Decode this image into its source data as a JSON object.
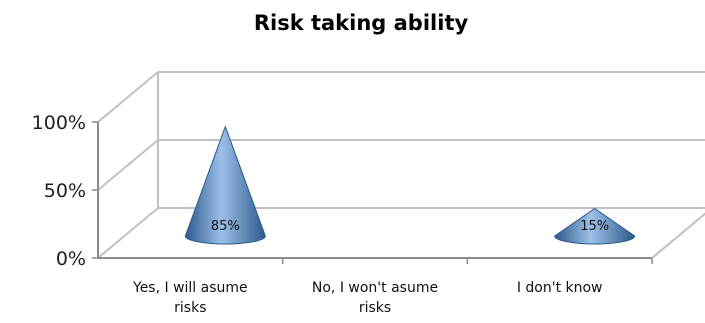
{
  "chart_data": {
    "type": "bar",
    "title": "Risk taking ability",
    "categories": [
      [
        "Yes, I will asume",
        "risks"
      ],
      [
        "No, I won't asume",
        "risks"
      ],
      [
        "I don't know"
      ]
    ],
    "values": [
      85,
      0,
      15
    ],
    "data_labels": [
      "85%",
      "",
      "15%"
    ],
    "y_ticks": [
      "0%",
      "50%",
      "100%"
    ],
    "ylim": [
      0,
      100
    ],
    "grid": true,
    "bar_shape": "cone",
    "colors": {
      "cone": "#4f81bd",
      "cone_dark": "#2c5a8c",
      "cone_light": "#9cc0e8",
      "wall": "#c0c0c0",
      "axis": "#8c8c8c"
    }
  }
}
